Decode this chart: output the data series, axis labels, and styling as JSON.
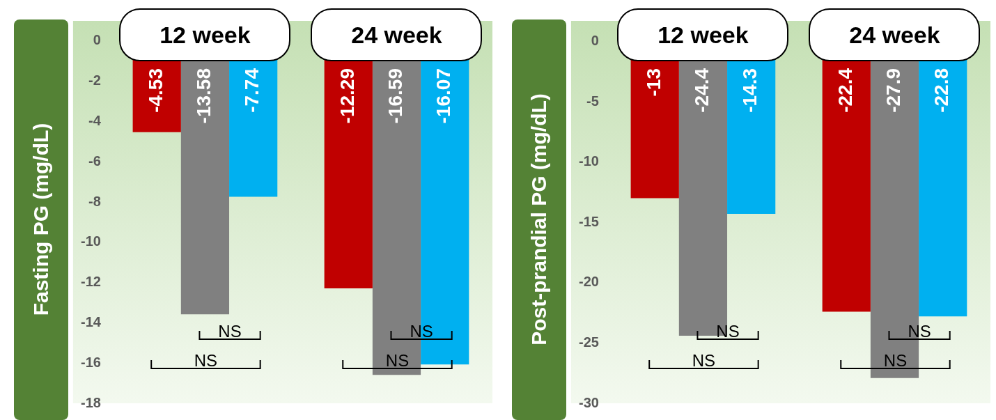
{
  "chart_data": [
    {
      "type": "bar",
      "ylabel": "Fasting PG (mg/dL)",
      "categories": [
        "12 week",
        "24 week"
      ],
      "series": [
        {
          "color": "#c00000",
          "values": [
            -4.53,
            -12.29
          ]
        },
        {
          "color": "#808080",
          "values": [
            -13.58,
            -16.59
          ]
        },
        {
          "color": "#00b0f0",
          "values": [
            -7.74,
            -16.07
          ]
        }
      ],
      "ylim": [
        -18,
        1
      ],
      "yticks": [
        -18,
        -16,
        -14,
        -12,
        -10,
        -8,
        -6,
        -4,
        -2,
        0
      ],
      "grid": false,
      "legend": false,
      "data_labels": true,
      "annotations": [
        "NS",
        "NS",
        "NS",
        "NS"
      ]
    },
    {
      "type": "bar",
      "ylabel": "Post-prandial PG (mg/dL)",
      "categories": [
        "12 week",
        "24 week"
      ],
      "series": [
        {
          "color": "#c00000",
          "values": [
            -13,
            -22.4
          ]
        },
        {
          "color": "#808080",
          "values": [
            -24.4,
            -27.9
          ]
        },
        {
          "color": "#00b0f0",
          "values": [
            -14.3,
            -22.8
          ]
        }
      ],
      "ylim": [
        -30,
        1.7
      ],
      "yticks": [
        -30,
        -25,
        -20,
        -15,
        -10,
        -5,
        0
      ],
      "grid": false,
      "legend": false,
      "data_labels": true,
      "annotations": [
        "NS",
        "NS",
        "NS",
        "NS"
      ]
    }
  ]
}
